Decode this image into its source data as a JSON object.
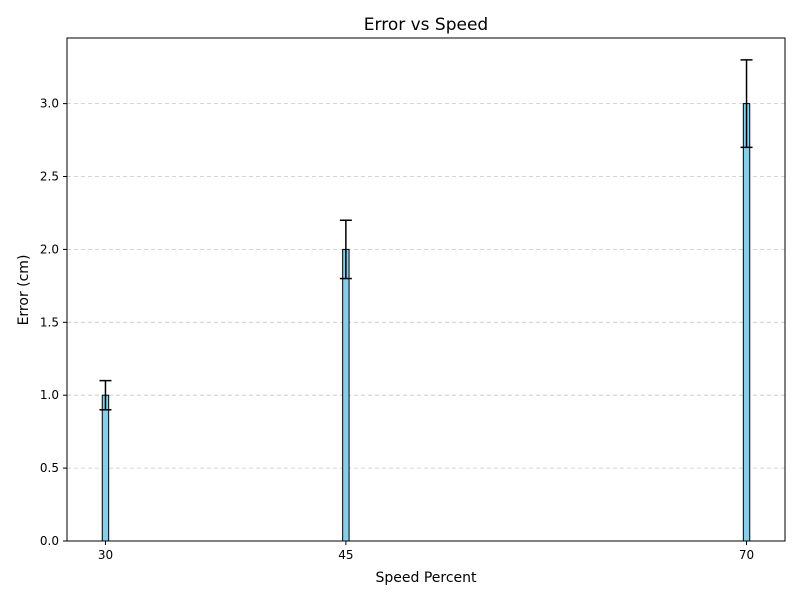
{
  "chart_data": {
    "type": "bar",
    "title": "Error vs Speed",
    "xlabel": "Speed Percent",
    "ylabel": "Error (cm)",
    "x": [
      30,
      45,
      70
    ],
    "x_tick_labels": [
      "30",
      "45",
      "70"
    ],
    "values": [
      1.0,
      2.0,
      3.0
    ],
    "error": [
      0.1,
      0.2,
      0.3
    ],
    "xlim": [
      27.6,
      72.4
    ],
    "ylim": [
      0,
      3.45
    ],
    "y_ticks": [
      0.0,
      0.5,
      1.0,
      1.5,
      2.0,
      2.5,
      3.0
    ],
    "y_tick_labels": [
      "0.0",
      "0.5",
      "1.0",
      "1.5",
      "2.0",
      "2.5",
      "3.0"
    ],
    "grid": "y-dashed",
    "colors": {
      "bar_fill": "#87ceeb",
      "bar_edge": "#000000",
      "error_bar": "#000000",
      "grid": "#c8c8c8",
      "axes": "#000000"
    }
  }
}
